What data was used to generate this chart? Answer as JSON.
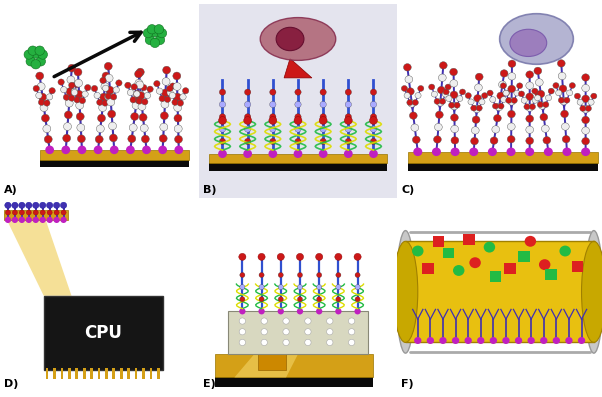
{
  "figure_width": 6.02,
  "figure_height": 3.97,
  "dpi": 100,
  "bg_color": "#ffffff",
  "panels": [
    {
      "label": "A)"
    },
    {
      "label": "B)"
    },
    {
      "label": "C)"
    },
    {
      "label": "D)"
    },
    {
      "label": "E)"
    },
    {
      "label": "F)"
    }
  ],
  "label_fontsize": 8,
  "gold_color": "#d4a017",
  "gold_dark": "#9a7500",
  "black_color": "#0a0a0a",
  "purple_color": "#4030b0",
  "blue_color": "#3050d0",
  "red_color": "#cc1818",
  "white_color": "#eeeeee",
  "green_color": "#18a030",
  "gray_color": "#999999",
  "cpu_text": "CPU",
  "magenta_color": "#c020c0",
  "panel_bg_B": "#e4e4ee",
  "yellow_beam": "#f5df80",
  "pink_cell": "#b05070",
  "gray_cell_outer": "#aaaacc",
  "gray_cell_inner": "#9977bb"
}
